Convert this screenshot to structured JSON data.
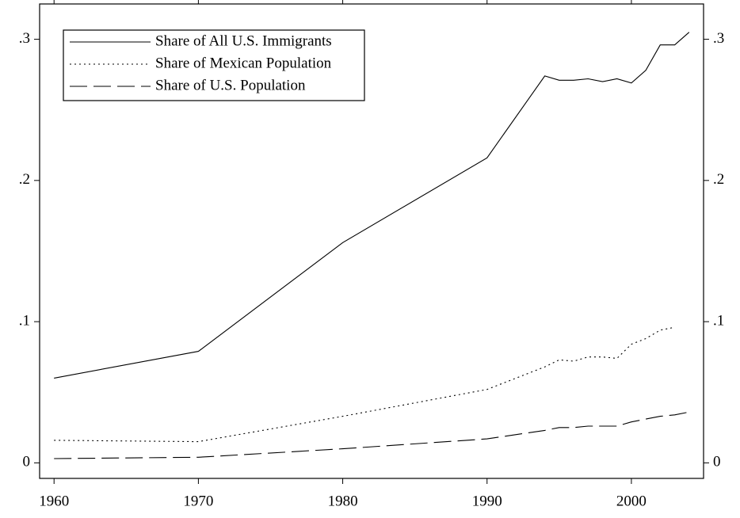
{
  "chart_data": {
    "type": "line",
    "x": [
      1960,
      1970,
      1980,
      1990,
      1994,
      1995,
      1996,
      1997,
      1998,
      1999,
      2000,
      2001,
      2002,
      2003,
      2004
    ],
    "series": [
      {
        "name": "Share of All U.S. Immigrants",
        "color": "#000000",
        "style": "solid",
        "values": [
          0.06,
          0.079,
          0.156,
          0.216,
          0.274,
          0.271,
          0.271,
          0.272,
          0.27,
          0.272,
          0.269,
          0.278,
          0.296,
          0.296,
          0.305
        ]
      },
      {
        "name": "Share of Mexican Population",
        "color": "#000000",
        "style": "dotted",
        "values": [
          0.016,
          0.015,
          0.033,
          0.052,
          0.068,
          0.073,
          0.072,
          0.075,
          0.075,
          0.074,
          0.084,
          0.088,
          0.094,
          0.096,
          null
        ]
      },
      {
        "name": "Share of U.S. Population",
        "color": "#000000",
        "style": "dashed",
        "values": [
          0.003,
          0.004,
          0.01,
          0.017,
          0.023,
          0.025,
          0.025,
          0.026,
          0.026,
          0.026,
          0.029,
          0.031,
          0.033,
          0.034,
          0.036
        ]
      }
    ],
    "xlim": [
      1959,
      2005
    ],
    "xticks": [
      1960,
      1970,
      1980,
      1990,
      2000
    ],
    "ylim": [
      -0.011,
      0.325
    ],
    "yticks": [
      0,
      {
        "value": 0.1,
        "label": ".1"
      },
      {
        "value": 0.2,
        "label": ".2"
      },
      {
        "value": 0.3,
        "label": ".3"
      }
    ],
    "legend": "upper left",
    "grid": false
  }
}
